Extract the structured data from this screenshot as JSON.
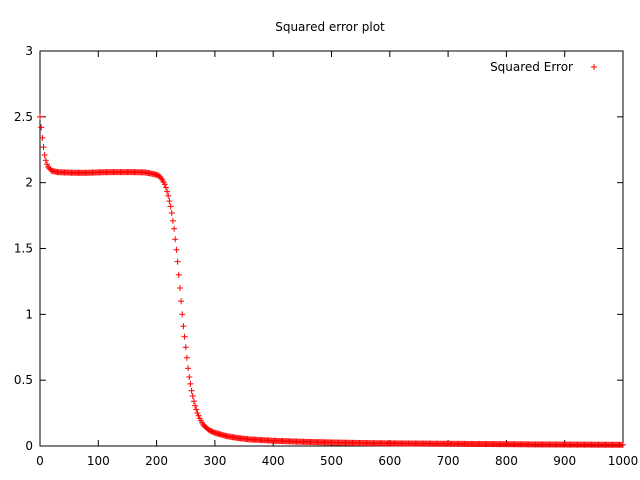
{
  "chart_data": {
    "type": "scatter",
    "title": "Squared error plot",
    "xlabel": "",
    "ylabel": "",
    "xlim": [
      0,
      1000
    ],
    "ylim": [
      0,
      3
    ],
    "xticks": [
      "0",
      "100",
      "200",
      "300",
      "400",
      "500",
      "600",
      "700",
      "800",
      "900",
      "1000"
    ],
    "yticks": [
      "0",
      "0.5",
      "1",
      "1.5",
      "2",
      "2.5",
      "3"
    ],
    "grid": false,
    "legend_position": "top-right",
    "marker": "+",
    "series": [
      {
        "name": "Squared Error",
        "color": "#ff0000",
        "points": [
          [
            0,
            2.5
          ],
          [
            2,
            2.42
          ],
          [
            4,
            2.34
          ],
          [
            6,
            2.27
          ],
          [
            8,
            2.21
          ],
          [
            10,
            2.17
          ],
          [
            12,
            2.14
          ],
          [
            14,
            2.12
          ],
          [
            16,
            2.11
          ],
          [
            18,
            2.1
          ],
          [
            20,
            2.09
          ],
          [
            25,
            2.085
          ],
          [
            30,
            2.08
          ],
          [
            40,
            2.078
          ],
          [
            60,
            2.075
          ],
          [
            80,
            2.075
          ],
          [
            100,
            2.078
          ],
          [
            120,
            2.08
          ],
          [
            140,
            2.08
          ],
          [
            160,
            2.08
          ],
          [
            180,
            2.078
          ],
          [
            190,
            2.07
          ],
          [
            200,
            2.06
          ],
          [
            205,
            2.05
          ],
          [
            210,
            2.02
          ],
          [
            215,
            1.98
          ],
          [
            220,
            1.9
          ],
          [
            225,
            1.8
          ],
          [
            230,
            1.65
          ],
          [
            235,
            1.45
          ],
          [
            240,
            1.2
          ],
          [
            245,
            0.95
          ],
          [
            250,
            0.75
          ],
          [
            255,
            0.55
          ],
          [
            260,
            0.42
          ],
          [
            265,
            0.32
          ],
          [
            270,
            0.25
          ],
          [
            275,
            0.2
          ],
          [
            280,
            0.16
          ],
          [
            290,
            0.12
          ],
          [
            300,
            0.1
          ],
          [
            320,
            0.075
          ],
          [
            340,
            0.06
          ],
          [
            360,
            0.05
          ],
          [
            380,
            0.045
          ],
          [
            400,
            0.04
          ],
          [
            450,
            0.032
          ],
          [
            500,
            0.027
          ],
          [
            560,
            0.022
          ],
          [
            600,
            0.02
          ],
          [
            700,
            0.017
          ],
          [
            800,
            0.014
          ],
          [
            850,
            0.012
          ],
          [
            900,
            0.011
          ],
          [
            1000,
            0.009
          ]
        ]
      }
    ]
  }
}
